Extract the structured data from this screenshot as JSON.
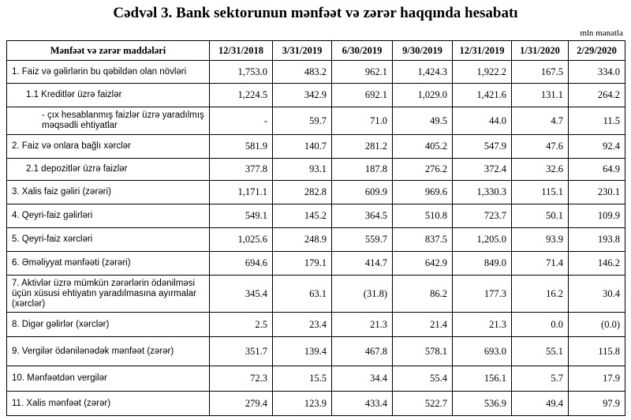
{
  "header": {
    "title": "Cədvəl 3. Bank sektorunun mənfəət və zərər haqqında hesabatı",
    "unit": "mln manatla"
  },
  "table": {
    "columns": [
      "Mənfəət və zərər maddələri",
      "12/31/2018",
      "3/31/2019",
      "6/30/2019",
      "9/30/2019",
      "12/31/2019",
      "1/31/2020",
      "2/29/2020"
    ],
    "rows": [
      {
        "label": "1. Faiz və gəlirlərin bu qəbildən olan növləri",
        "values": [
          "1,753.0",
          "483.2",
          "962.1",
          "1,424.3",
          "1,922.2",
          "167.5",
          "334.0"
        ]
      },
      {
        "label": "1.1 Kreditlər üzrə faizlər",
        "values": [
          "1,224.5",
          "342.9",
          "692.1",
          "1,029.0",
          "1,421.6",
          "131.1",
          "264.2"
        ]
      },
      {
        "label": "-  çıx hesablanmış faizlər üzrə yaradılmış məqsədli ehtiyatlar",
        "values": [
          "-",
          "59.7",
          "71.0",
          "49.5",
          "44.0",
          "4.7",
          "11.5"
        ]
      },
      {
        "label": "2. Faiz və onlara bağlı xərclər",
        "values": [
          "581.9",
          "140.7",
          "281.2",
          "405.2",
          "547.9",
          "47.6",
          "92.4"
        ]
      },
      {
        "label": "2.1 depozitlər üzrə faizlər",
        "values": [
          "377.8",
          "93.1",
          "187.8",
          "276.2",
          "372.4",
          "32.6",
          "64.9"
        ]
      },
      {
        "label": "3. Xalis faiz gəliri (zərəri)",
        "values": [
          "1,171.1",
          "282.8",
          "609.9",
          "969.6",
          "1,330.3",
          "115.1",
          "230.1"
        ]
      },
      {
        "label": "4. Qeyri-faiz gəlirləri",
        "values": [
          "549.1",
          "145.2",
          "364.5",
          "510.8",
          "723.7",
          "50.1",
          "109.9"
        ]
      },
      {
        "label": "5. Qeyri-faiz xərcləri",
        "values": [
          "1,025.6",
          "248.9",
          "559.7",
          "837.5",
          "1,205.0",
          "93.9",
          "193.8"
        ]
      },
      {
        "label": "6. Əməliyyat mənfəəti (zərəri)",
        "values": [
          "694.6",
          "179.1",
          "414.7",
          "642.9",
          "849.0",
          "71.4",
          "146.2"
        ]
      },
      {
        "label": "7. Aktivlər üzrə mümkün zərərlərin ödənilməsi üçün xüsusi ehtiyatın yaradılmasına ayırmalar (xərclər)",
        "values": [
          "345.4",
          "63.1",
          "(31.8)",
          "86.2",
          "177.3",
          "16.2",
          "30.4"
        ]
      },
      {
        "label": "8. Digər gəlirlər (xərclər)",
        "values": [
          "2.5",
          "23.4",
          "21.3",
          "21.4",
          "21.3",
          "0.0",
          "(0.0)"
        ]
      },
      {
        "label": "9. Vergilər ödənilənədək mənfəət (zərər)",
        "values": [
          "351.7",
          "139.4",
          "467.8",
          "578.1",
          "693.0",
          "55.1",
          "115.8"
        ]
      },
      {
        "label": "10. Mənfəətdən vergilər",
        "values": [
          "72.3",
          "15.5",
          "34.4",
          "55.4",
          "156.1",
          "5.7",
          "17.9"
        ]
      },
      {
        "label": "11. Xalis mənfəət (zərər)",
        "values": [
          "279.4",
          "123.9",
          "433.4",
          "522.7",
          "536.9",
          "49.4",
          "97.9"
        ]
      }
    ]
  }
}
